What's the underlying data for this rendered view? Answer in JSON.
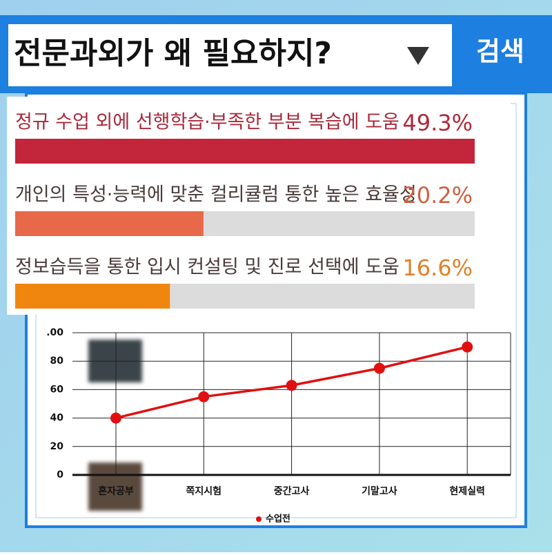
{
  "search": {
    "query": "전문과외가 왜 필요하지?",
    "button": "검색"
  },
  "chart_data": [
    {
      "type": "hbar",
      "categories": [
        "정규 수업 외에 선행학습·부족한 부분 복습에 도움",
        "개인의 특성·능력에 맞춘 컬리큘럼 통한 높은 효율성",
        "정보습득을 통한 입시 컨설팅 및 진로 선택에 도움"
      ],
      "values": [
        49.3,
        20.2,
        16.6
      ],
      "value_labels": [
        "49.3%",
        "20.2%",
        "16.6%"
      ],
      "colors": [
        "#c3253a",
        "#e8694a",
        "#f0860e"
      ],
      "label_colors": [
        "#a8283a",
        "#4a3a3a",
        "#4a3a3a"
      ],
      "value_label_colors": [
        "#b0283a",
        "#d06040",
        "#e0802a"
      ]
    },
    {
      "type": "line",
      "categories": [
        "혼자공부",
        "쪽지시험",
        "중간고사",
        "기말고사",
        "현제실력"
      ],
      "series": [
        {
          "name": "수업전",
          "color": "#e01010",
          "values": [
            40,
            55,
            63,
            75,
            90
          ]
        }
      ],
      "ylim": [
        0,
        100
      ],
      "yticks": [
        0,
        20,
        40,
        60,
        80,
        {
          "value": 100,
          "label": ".00"
        }
      ],
      "grid": true
    }
  ]
}
